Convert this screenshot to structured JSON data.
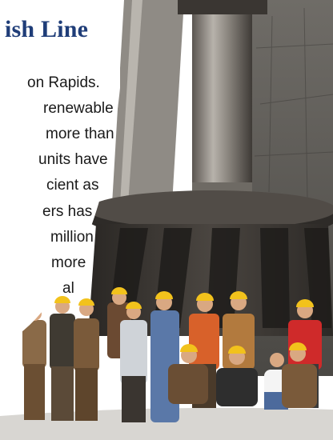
{
  "article": {
    "title": "ish Line",
    "lines": [
      "on Rapids.",
      "renewable",
      "more  than",
      "units  have",
      "cient  as",
      "ers has",
      "million",
      "more",
      "al"
    ]
  },
  "photo": {
    "subject": "hydro turbine runner with workers in hard hats"
  },
  "colors": {
    "title": "#1f3d78",
    "text": "#1a1a1a",
    "hardhat": "#f2c21c"
  }
}
